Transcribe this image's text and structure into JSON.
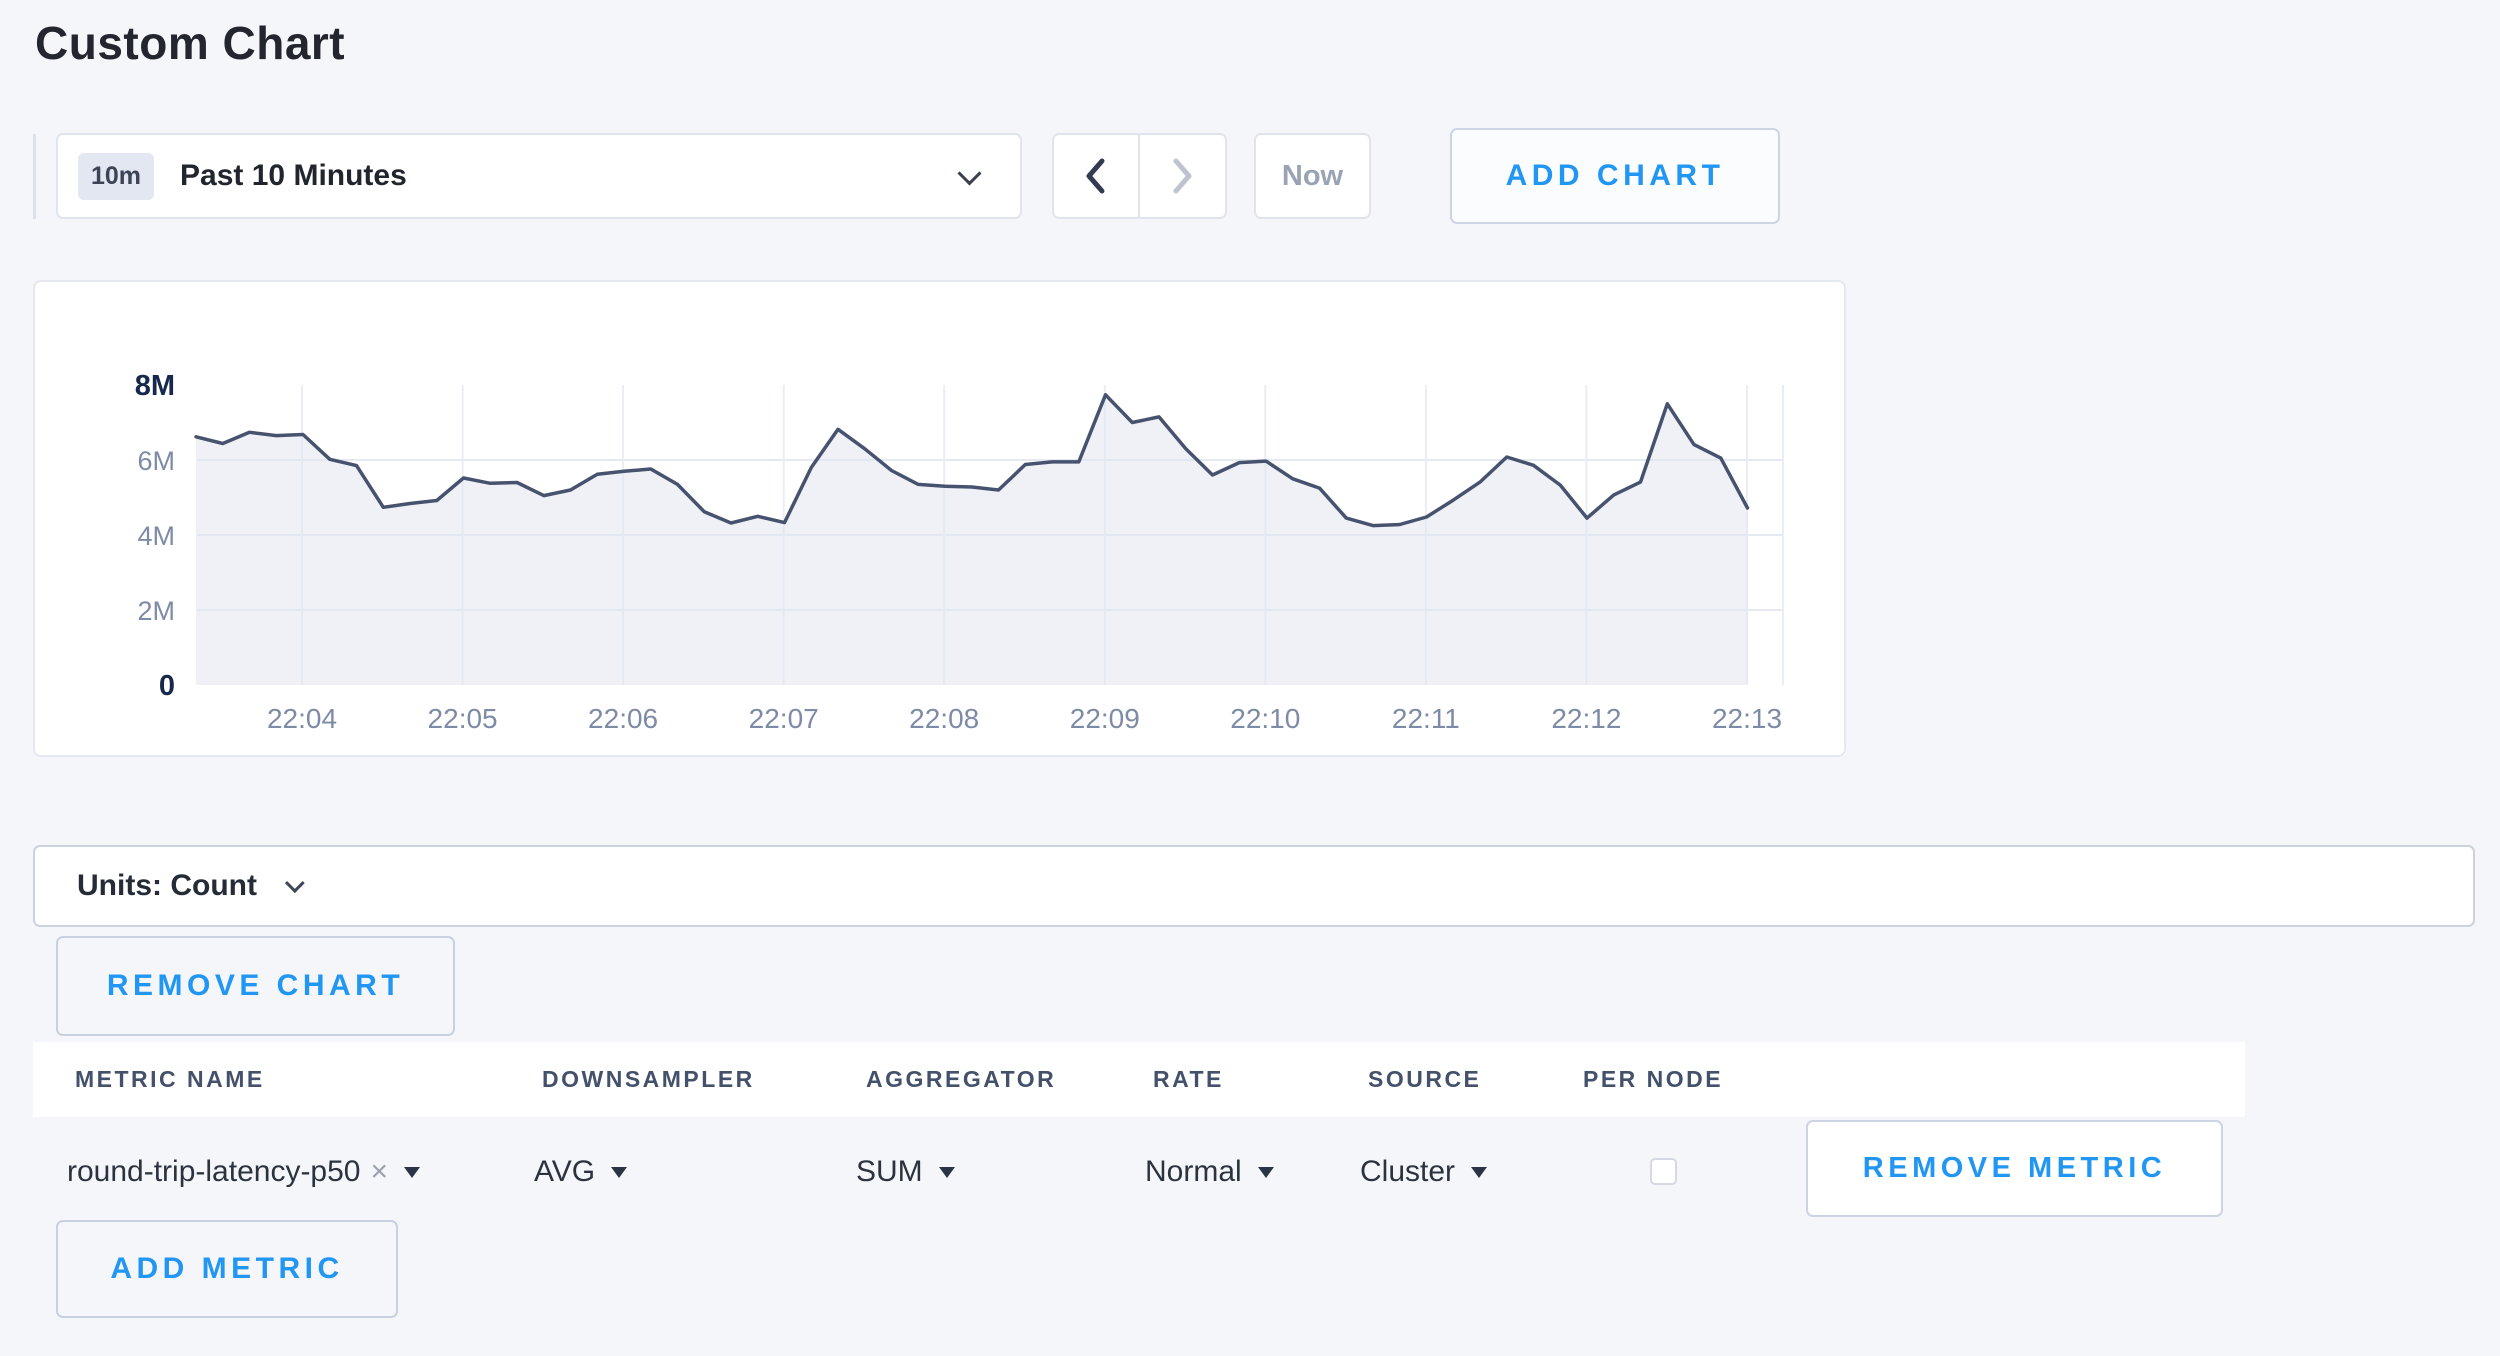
{
  "page": {
    "title": "Custom Chart"
  },
  "toolbar": {
    "time_range": {
      "badge": "10m",
      "label": "Past 10 Minutes"
    },
    "now_label": "Now",
    "add_chart_label": "ADD CHART"
  },
  "chart_panel": {
    "units_label": "Units: Count",
    "remove_chart_label": "REMOVE CHART"
  },
  "metrics_table": {
    "headers": [
      "METRIC NAME",
      "DOWNSAMPLER",
      "AGGREGATOR",
      "RATE",
      "SOURCE",
      "PER NODE"
    ],
    "row": {
      "metric_name": "round-trip-latency-p50",
      "clear_symbol": "×",
      "downsampler": "AVG",
      "aggregator": "SUM",
      "rate": "Normal",
      "source": "Cluster",
      "per_node_checked": false,
      "remove_metric_label": "REMOVE METRIC"
    },
    "add_metric_label": "ADD METRIC"
  },
  "colors": {
    "accent_blue": "#2196f3",
    "page_background": "#f5f6fa",
    "chart_line": "#47536e",
    "chart_fill": "rgba(226,230,240,0.55)",
    "axis_gray": "#7e8ba6",
    "axis_strong": "#16294c"
  },
  "chart_data": {
    "type": "area",
    "title": "",
    "xlabel": "",
    "ylabel": "Count",
    "unit": "count, values in millions",
    "grid": true,
    "legend": "none",
    "ylim_millions": [
      0,
      8
    ],
    "y_ticks": [
      {
        "label": "0",
        "value": 0,
        "emphasis": true
      },
      {
        "label": "2M",
        "value": 2,
        "emphasis": false
      },
      {
        "label": "4M",
        "value": 4,
        "emphasis": false
      },
      {
        "label": "6M",
        "value": 6,
        "emphasis": false
      },
      {
        "label": "8M",
        "value": 8,
        "emphasis": true
      }
    ],
    "x_tick_labels": [
      "22:04",
      "22:05",
      "22:06",
      "22:07",
      "22:08",
      "22:09",
      "22:10",
      "22:11",
      "22:12",
      "22:13"
    ],
    "sample_interval_seconds": 10,
    "first_point_time": "22:03:20",
    "first_tick_point_index": 4,
    "points_per_tick": 6,
    "series": [
      {
        "name": "round-trip-latency-p50",
        "values_millions": [
          6.62,
          6.44,
          6.74,
          6.65,
          6.68,
          6.02,
          5.85,
          4.74,
          4.84,
          4.92,
          5.52,
          5.38,
          5.4,
          5.05,
          5.2,
          5.62,
          5.7,
          5.76,
          5.35,
          4.62,
          4.32,
          4.5,
          4.33,
          5.8,
          6.82,
          6.3,
          5.72,
          5.35,
          5.3,
          5.28,
          5.2,
          5.88,
          5.95,
          5.95,
          7.74,
          7.0,
          7.15,
          6.3,
          5.6,
          5.93,
          5.97,
          5.5,
          5.25,
          4.45,
          4.25,
          4.28,
          4.48,
          4.93,
          5.41,
          6.08,
          5.86,
          5.33,
          4.45,
          5.07,
          5.41,
          7.5,
          6.41,
          6.05,
          4.72
        ]
      }
    ]
  }
}
